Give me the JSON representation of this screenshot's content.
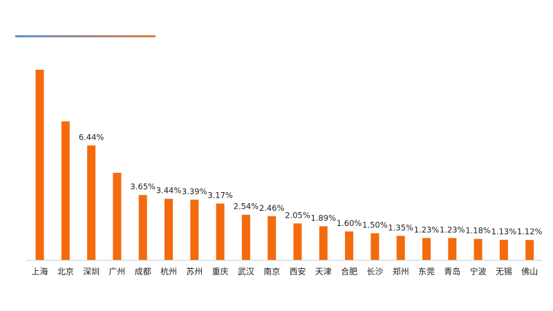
{
  "chart_data": {
    "type": "bar",
    "title": "",
    "xlabel": "",
    "ylabel": "",
    "categories": [
      "上海",
      "北京",
      "深圳",
      "广州",
      "成都",
      "杭州",
      "苏州",
      "重庆",
      "武汉",
      "南京",
      "西安",
      "天津",
      "合肥",
      "长沙",
      "郑州",
      "东莞",
      "青岛",
      "宁波",
      "无锡",
      "佛山"
    ],
    "values": [
      10.7,
      7.8,
      6.44,
      4.9,
      3.65,
      3.44,
      3.39,
      3.17,
      2.54,
      2.46,
      2.05,
      1.89,
      1.6,
      1.5,
      1.35,
      1.23,
      1.23,
      1.18,
      1.13,
      1.12
    ],
    "labels": [
      "",
      "",
      "6.44%",
      "",
      "3.65%",
      "3.44%",
      "3.39%",
      "3.17%",
      "2.54%",
      "2.46%",
      "2.05%",
      "1.89%",
      "1.60%",
      "1.50%",
      "1.35%",
      "1.23%",
      "1.23%",
      "1.18%",
      "1.13%",
      "1.12%"
    ],
    "ylim": [
      0,
      10.7
    ],
    "grid": false,
    "bar_color": "#f36b0c",
    "axis_color": "#cccccc",
    "header_rule_colors": [
      "#5b8fd6",
      "#e07a3d"
    ]
  }
}
